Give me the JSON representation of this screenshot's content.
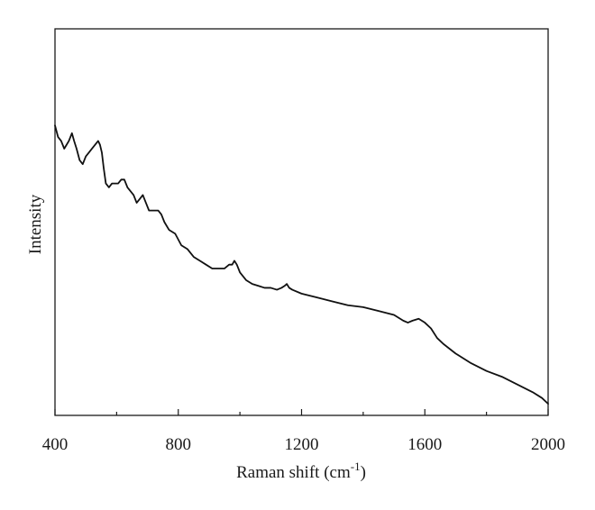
{
  "chart_data": {
    "type": "line",
    "title": "",
    "xlabel": "Raman shift (cm",
    "xlabel_superscript": "-1",
    "xlabel_close": ")",
    "ylabel": "Intensity",
    "xlim": [
      400,
      2000
    ],
    "ylim": [
      0,
      100
    ],
    "x_ticks": [
      400,
      800,
      1200,
      1600,
      2000
    ],
    "x_tick_labels": [
      "400",
      "800",
      "1200",
      "1600",
      "2000"
    ],
    "y_ticks_shown": false,
    "grid": false,
    "legend": "none",
    "series": [
      {
        "color": "#111111",
        "x": [
          400,
          410,
          420,
          430,
          445,
          455,
          462,
          470,
          480,
          490,
          500,
          510,
          520,
          530,
          540,
          546,
          552,
          558,
          565,
          575,
          585,
          595,
          605,
          615,
          625,
          635,
          645,
          655,
          665,
          675,
          685,
          695,
          705,
          715,
          725,
          735,
          745,
          755,
          770,
          790,
          810,
          830,
          850,
          870,
          890,
          910,
          930,
          950,
          965,
          975,
          982,
          990,
          1000,
          1020,
          1040,
          1060,
          1080,
          1100,
          1120,
          1135,
          1145,
          1152,
          1160,
          1170,
          1200,
          1250,
          1300,
          1350,
          1400,
          1450,
          1500,
          1530,
          1545,
          1560,
          1580,
          1600,
          1620,
          1640,
          1660,
          1700,
          1750,
          1800,
          1850,
          1900,
          1950,
          1980,
          2000
        ],
        "y": [
          75,
          72,
          71,
          69,
          71,
          73,
          71,
          69,
          66,
          65,
          67,
          68,
          69,
          70,
          71,
          70,
          68,
          64,
          60,
          59,
          60,
          60,
          60,
          61,
          61,
          59,
          58,
          57,
          55,
          56,
          57,
          55,
          53,
          53,
          53,
          53,
          52,
          50,
          48,
          47,
          44,
          43,
          41,
          40,
          39,
          38,
          38,
          38,
          39,
          39,
          40,
          39,
          37,
          35,
          34,
          33.5,
          33,
          33,
          32.5,
          33,
          33.5,
          34,
          33,
          32.5,
          31.5,
          30.5,
          29.5,
          28.5,
          28,
          27,
          26,
          24.5,
          24,
          24.5,
          25,
          24,
          22.5,
          20,
          18.5,
          16,
          13.5,
          11.5,
          10,
          8,
          6,
          4.5,
          3
        ]
      }
    ]
  }
}
